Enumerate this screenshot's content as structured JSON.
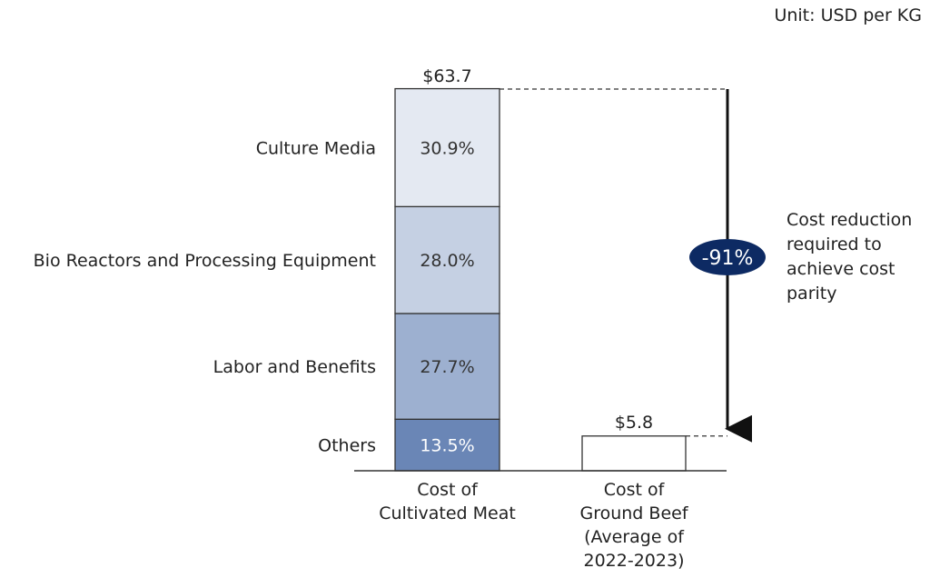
{
  "chart_data": {
    "type": "bar",
    "unit_label": "Unit: USD per KG",
    "categories": [
      "Cost of\nCultivated Meat",
      "Cost of\nGround Beef\n(Average of\n2022-2023)"
    ],
    "totals": [
      63.7,
      5.8
    ],
    "total_labels": [
      "$63.7",
      "$5.8"
    ],
    "segments": [
      {
        "name": "Culture Media",
        "value": 30.9,
        "label": "30.9%",
        "color": "#e4e9f2",
        "text_color": "#333333"
      },
      {
        "name": "Bio Reactors and Processing Equipment",
        "value": 28.0,
        "label": "28.0%",
        "color": "#c5d0e3",
        "text_color": "#333333"
      },
      {
        "name": "Labor and Benefits",
        "value": 27.7,
        "label": "27.7%",
        "color": "#9db0d0",
        "text_color": "#333333"
      },
      {
        "name": "Others",
        "value": 13.5,
        "label": "13.5%",
        "color": "#6a86b6",
        "text_color": "#ffffff"
      }
    ],
    "ground_beef_color": "#ffffff",
    "reduction": {
      "label": "-91%",
      "text": "Cost reduction\nrequired to\nachieve cost\nparity",
      "badge_color": "#0d2a63"
    },
    "ylim": [
      0,
      63.7
    ]
  }
}
